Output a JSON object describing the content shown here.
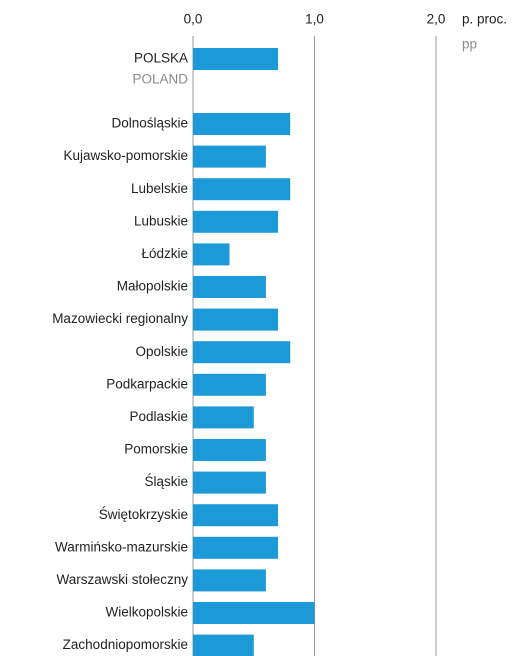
{
  "chart_data": {
    "type": "barh",
    "x_axis_unit": "p. proc.",
    "x_axis_unit_translation": "pp",
    "categories": [
      "POLSKA",
      "Dolnośląskie",
      "Kujawsko-pomorskie",
      "Lubelskie",
      "Lubuskie",
      "Łódzkie",
      "Małopolskie",
      "Mazowiecki regionalny",
      "Opolskie",
      "Podkarpackie",
      "Podlaskie",
      "Pomorskie",
      "Śląskie",
      "Świętokrzyskie",
      "Warmińsko-mazurskie",
      "Warszawski stołeczny",
      "Wielkopolskie",
      "Zachodniopomorskie"
    ],
    "first_category_translation": "POLAND",
    "values": [
      0.7,
      0.8,
      0.6,
      0.8,
      0.7,
      0.3,
      0.6,
      0.7,
      0.8,
      0.6,
      0.5,
      0.6,
      0.6,
      0.7,
      0.7,
      0.6,
      1.0,
      0.5
    ],
    "color": "#1b9ad7",
    "xlim": [
      0,
      2
    ],
    "xticks": [
      {
        "value": 0,
        "label": "0,0"
      },
      {
        "value": 1,
        "label": "1,0"
      },
      {
        "value": 2,
        "label": "2,0"
      }
    ],
    "grid": true
  }
}
